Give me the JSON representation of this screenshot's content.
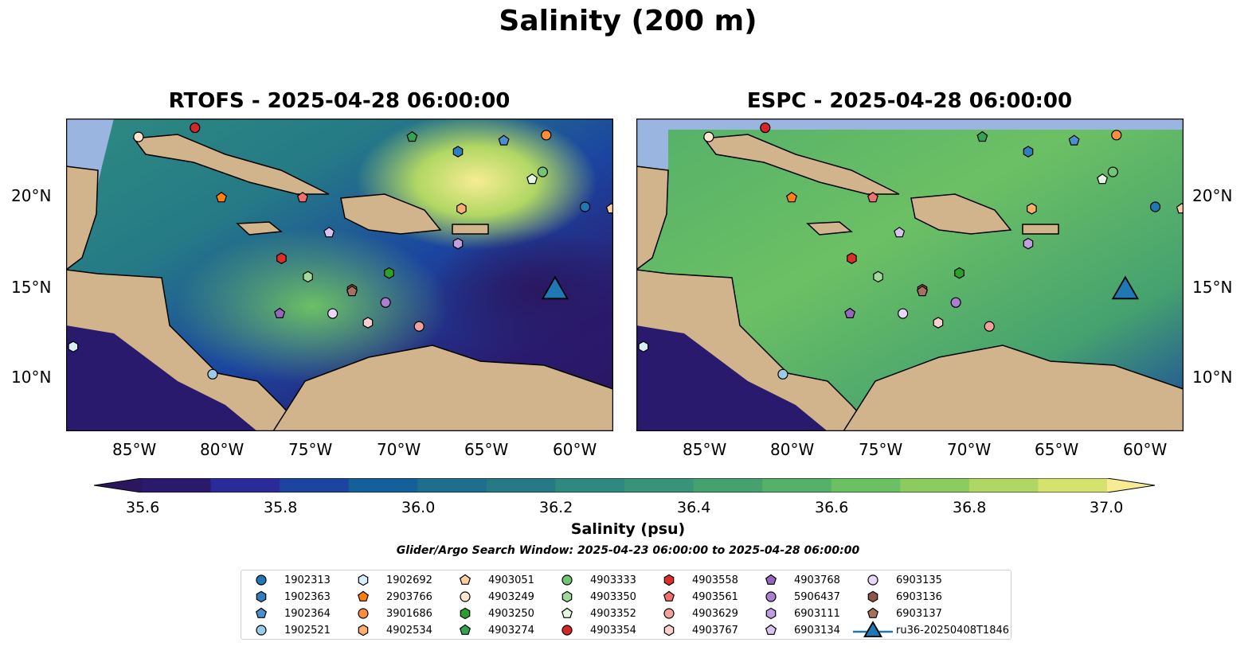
{
  "title": "Salinity (200 m)",
  "panels": [
    {
      "title": "RTOFS - 2025-04-28 06:00:00"
    },
    {
      "title": "ESPC - 2025-04-28 06:00:00"
    }
  ],
  "axes": {
    "lon_labels": [
      "85°W",
      "80°W",
      "75°W",
      "70°W",
      "65°W",
      "60°W"
    ],
    "lat_labels": [
      "20°N",
      "15°N",
      "10°N"
    ]
  },
  "colorbar": {
    "label": "Salinity (psu)",
    "min": 35.6,
    "max": 37.0,
    "step": 0.1,
    "tick_labels": [
      "35.6",
      "35.8",
      "36.0",
      "36.2",
      "36.4",
      "36.6",
      "36.8",
      "37.0"
    ],
    "colors": [
      "#2a1a6e",
      "#2b2a9a",
      "#1b45a0",
      "#155f9a",
      "#1e6f8e",
      "#257a86",
      "#2e8a80",
      "#389478",
      "#45a26f",
      "#55b16a",
      "#6cc064",
      "#8ccb5e",
      "#b0d763",
      "#d6e26e"
    ],
    "under_color": "#2a1760",
    "over_color": "#f7ec93"
  },
  "search_window": "Glider/Argo Search Window: 2025-04-23 06:00:00 to 2025-04-28 06:00:00",
  "legend": [
    {
      "label": "1902313",
      "marker": "circle",
      "color": "#1f77b4"
    },
    {
      "label": "1902363",
      "marker": "hexagon",
      "color": "#2f7fbf"
    },
    {
      "label": "1902364",
      "marker": "pentagon",
      "color": "#4a90d0"
    },
    {
      "label": "1902521",
      "marker": "circle",
      "color": "#9ecae9"
    },
    {
      "label": "1902692",
      "marker": "hexagon",
      "color": "#d6eef8"
    },
    {
      "label": "2903766",
      "marker": "pentagon",
      "color": "#ff7f0e"
    },
    {
      "label": "3901686",
      "marker": "circle",
      "color": "#fd8d3c"
    },
    {
      "label": "4902534",
      "marker": "hexagon",
      "color": "#fdae6b"
    },
    {
      "label": "4903051",
      "marker": "pentagon",
      "color": "#fdd0a2"
    },
    {
      "label": "4903249",
      "marker": "circle",
      "color": "#fee6ce"
    },
    {
      "label": "4903250",
      "marker": "hexagon",
      "color": "#2ca02c"
    },
    {
      "label": "4903274",
      "marker": "pentagon",
      "color": "#31a354"
    },
    {
      "label": "4903333",
      "marker": "circle",
      "color": "#74c476"
    },
    {
      "label": "4903350",
      "marker": "hexagon",
      "color": "#a1d99b"
    },
    {
      "label": "4903352",
      "marker": "pentagon",
      "color": "#e5f5e0"
    },
    {
      "label": "4903354",
      "marker": "circle",
      "color": "#d62728"
    },
    {
      "label": "4903558",
      "marker": "hexagon",
      "color": "#de2d26"
    },
    {
      "label": "4903561",
      "marker": "pentagon",
      "color": "#f07070"
    },
    {
      "label": "4903629",
      "marker": "circle",
      "color": "#f4a09c"
    },
    {
      "label": "4903767",
      "marker": "hexagon",
      "color": "#fcd0ce"
    },
    {
      "label": "4903768",
      "marker": "pentagon",
      "color": "#9467bd"
    },
    {
      "label": "5906437",
      "marker": "circle",
      "color": "#a97fd0"
    },
    {
      "label": "6903111",
      "marker": "hexagon",
      "color": "#c19ee0"
    },
    {
      "label": "6903134",
      "marker": "pentagon",
      "color": "#dac3f0"
    },
    {
      "label": "6903135",
      "marker": "circle",
      "color": "#ead8fb"
    },
    {
      "label": "6903136",
      "marker": "hexagon",
      "color": "#8c564b"
    },
    {
      "label": "6903137",
      "marker": "pentagon",
      "color": "#a8715f"
    },
    {
      "label": "ru36-20250408T1846",
      "marker": "triangle",
      "color": "#1f77b4"
    }
  ],
  "markers": [
    {
      "id": "1902313",
      "lon": -59.6,
      "lat": 19.2
    },
    {
      "id": "1902363",
      "lon": -66.8,
      "lat": 22.2
    },
    {
      "id": "1902364",
      "lon": -64.2,
      "lat": 22.8
    },
    {
      "id": "1902521",
      "lon": -80.7,
      "lat": 10.1
    },
    {
      "id": "1902692",
      "lon": -88.6,
      "lat": 11.6
    },
    {
      "id": "2903766",
      "lon": -80.2,
      "lat": 19.7
    },
    {
      "id": "3901686",
      "lon": -61.8,
      "lat": 23.1
    },
    {
      "id": "4902534",
      "lon": -66.6,
      "lat": 19.1
    },
    {
      "id": "4903051",
      "lon": -58.1,
      "lat": 19.1
    },
    {
      "id": "4903249",
      "lon": -84.9,
      "lat": 23.0
    },
    {
      "id": "4903250",
      "lon": -70.7,
      "lat": 15.6
    },
    {
      "id": "4903274",
      "lon": -69.4,
      "lat": 23.0
    },
    {
      "id": "4903333",
      "lon": -62.0,
      "lat": 21.1
    },
    {
      "id": "4903350",
      "lon": -75.3,
      "lat": 15.4
    },
    {
      "id": "4903352",
      "lon": -62.6,
      "lat": 20.7
    },
    {
      "id": "4903354",
      "lon": -81.7,
      "lat": 23.5
    },
    {
      "id": "4903558",
      "lon": -76.8,
      "lat": 16.4
    },
    {
      "id": "4903561",
      "lon": -75.6,
      "lat": 19.7
    },
    {
      "id": "4903629",
      "lon": -69.0,
      "lat": 12.7
    },
    {
      "id": "4903767",
      "lon": -71.9,
      "lat": 12.9
    },
    {
      "id": "4903768",
      "lon": -76.9,
      "lat": 13.4
    },
    {
      "id": "5906437",
      "lon": -70.9,
      "lat": 14.0
    },
    {
      "id": "6903111",
      "lon": -66.8,
      "lat": 17.2
    },
    {
      "id": "6903134",
      "lon": -74.1,
      "lat": 17.8
    },
    {
      "id": "6903135",
      "lon": -73.9,
      "lat": 13.4
    },
    {
      "id": "6903136",
      "lon": -72.8,
      "lat": 14.7
    },
    {
      "id": "6903137",
      "lon": -72.8,
      "lat": 14.6
    },
    {
      "id": "ru36-20250408T1846",
      "lon": -61.3,
      "lat": 14.6
    }
  ],
  "map_extent": {
    "lon_min": -89.0,
    "lon_max": -58.0,
    "lat_min": 7.0,
    "lat_max": 24.0
  },
  "colors": {
    "land": "#d2b48c",
    "shelf": "#9ab6e0",
    "coast": "#000000"
  }
}
